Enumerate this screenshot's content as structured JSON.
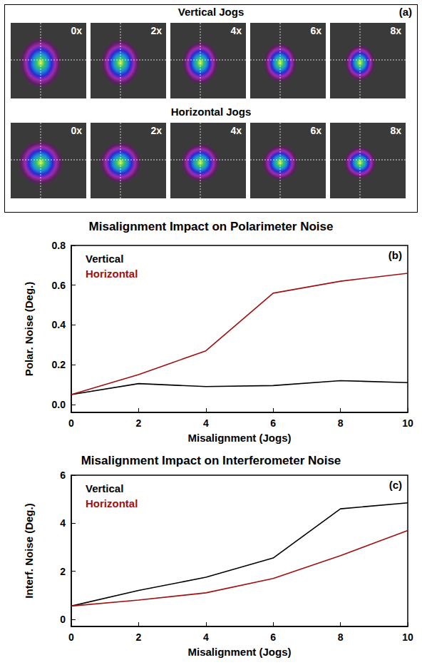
{
  "panel_a": {
    "letter": "(a)",
    "rows": [
      {
        "title": "Vertical Jogs",
        "labels": [
          "0x",
          "2x",
          "4x",
          "6x",
          "8x"
        ]
      },
      {
        "title": "Horizontal Jogs",
        "labels": [
          "0x",
          "2x",
          "4x",
          "6x",
          "8x"
        ]
      }
    ]
  },
  "chart_data": [
    {
      "type": "line",
      "title": "Misalignment Impact on Polarimeter Noise",
      "annotations": [
        "(b)"
      ],
      "x_label": "Misalignment (Jogs)",
      "y_label": "Polar. Noise (Deg.)",
      "x": [
        0,
        2,
        4,
        6,
        8,
        10
      ],
      "series": [
        {
          "name": "Vertical",
          "color": "#000000",
          "values": [
            0.05,
            0.105,
            0.09,
            0.095,
            0.12,
            0.11
          ]
        },
        {
          "name": "Horizontal",
          "color": "#a01010",
          "values": [
            0.05,
            0.15,
            0.27,
            0.56,
            0.62,
            0.66
          ]
        }
      ],
      "xlim": [
        0,
        10
      ],
      "xticks": [
        0,
        2,
        4,
        6,
        8,
        10
      ],
      "ylim": [
        -0.04,
        0.8
      ],
      "yticks": [
        {
          "value": 0,
          "label": "0.0"
        },
        {
          "value": 0.2,
          "label": "0.2"
        },
        {
          "value": 0.4,
          "label": "0.4"
        },
        {
          "value": 0.6,
          "label": "0.6"
        },
        {
          "value": 0.8,
          "label": "0.8"
        }
      ],
      "grid": false,
      "legend": "upper left"
    },
    {
      "type": "line",
      "title": "Misalignment Impact on Interferometer Noise",
      "annotations": [
        "(c)"
      ],
      "x_label": "Misalignment (Jogs)",
      "y_label": "Interf. Noise (Deg.)",
      "x": [
        0,
        2,
        4,
        6,
        8,
        10
      ],
      "series": [
        {
          "name": "Vertical",
          "color": "#000000",
          "values": [
            0.55,
            1.2,
            1.75,
            2.55,
            4.6,
            4.85
          ]
        },
        {
          "name": "Horizontal",
          "color": "#a01010",
          "values": [
            0.55,
            0.8,
            1.1,
            1.7,
            2.65,
            3.7
          ]
        }
      ],
      "xlim": [
        0,
        10
      ],
      "xticks": [
        0,
        2,
        4,
        6,
        8,
        10
      ],
      "ylim": [
        -0.3,
        6
      ],
      "yticks": [
        0,
        2,
        4,
        6
      ],
      "grid": false,
      "legend": "upper left"
    }
  ]
}
